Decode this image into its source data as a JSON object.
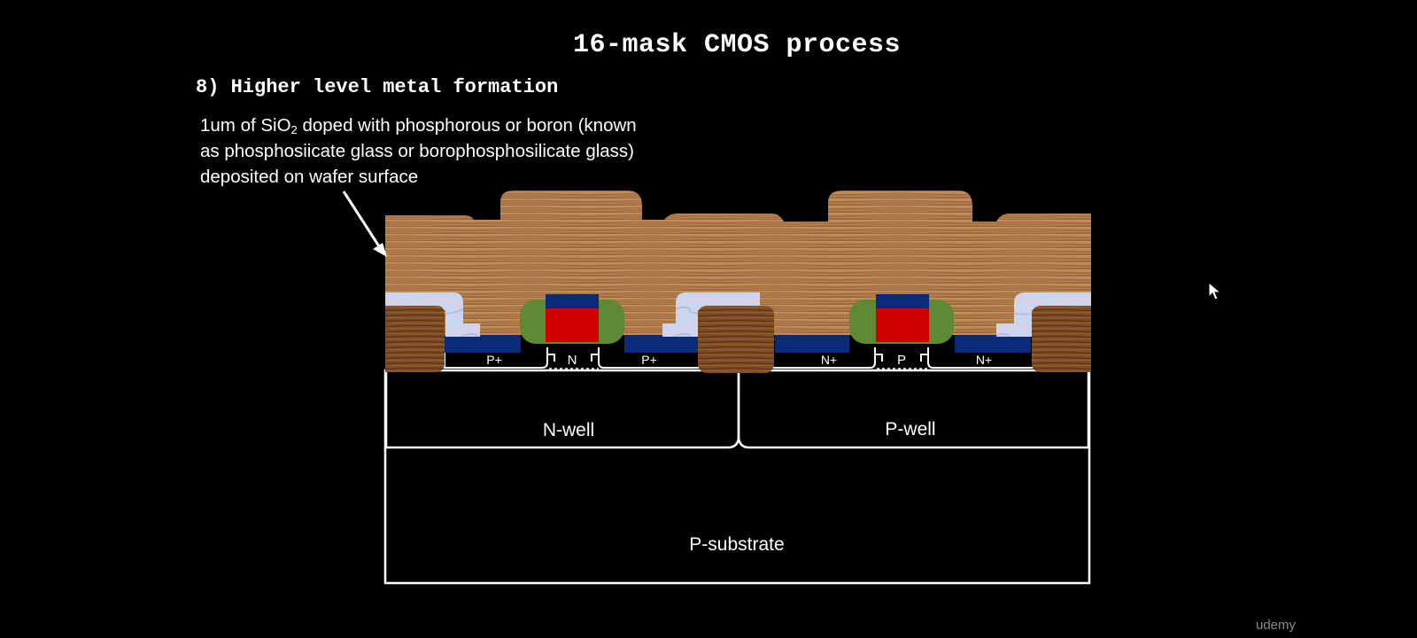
{
  "slide_title": "16-mask CMOS process",
  "step_title": "8) Higher level metal formation",
  "description": {
    "line1_before": "1um of SiO",
    "line1_subscript": "2",
    "line1_after": " doped with phosphorous or boron (known",
    "line2": "as phosphosiicate glass or borophosphosilicate glass)",
    "line3": "deposited on wafer surface"
  },
  "labels": {
    "p_substrate": "P-substrate",
    "n_well": "N-well",
    "p_well": "P-well",
    "pmos_src": "P+",
    "pmos_channel": "N",
    "pmos_drn": "P+",
    "nmos_src": "N+",
    "nmos_channel": "P",
    "nmos_drn": "N+"
  },
  "watermark": "udemy",
  "colors": {
    "background": "#000000",
    "glass": "#b98557",
    "field_oxide": "#7a4a22",
    "metal_spacer": "#cdd8ee",
    "silicide": "#0a2a7a",
    "gate_poly": "#d10000",
    "gate_oxide_sidewall": "#5e8a35",
    "outline": "#ffffff"
  }
}
